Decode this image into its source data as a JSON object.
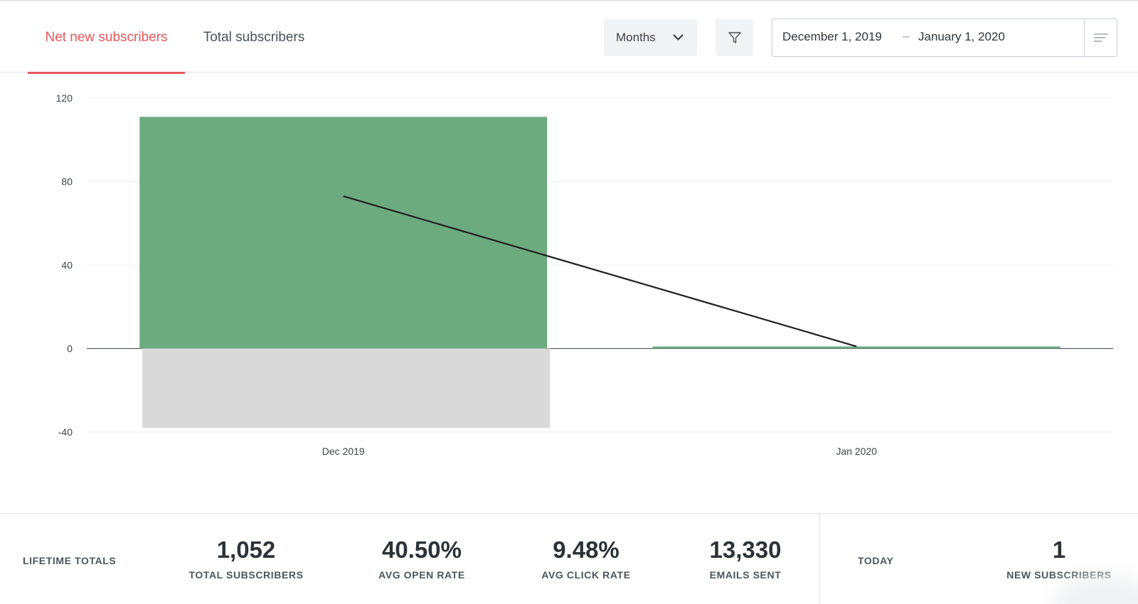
{
  "tabs": {
    "net_new": "Net new subscribers",
    "total": "Total subscribers"
  },
  "toolbar": {
    "period_select": "Months",
    "date_from": "December 1, 2019",
    "date_separator": "–",
    "date_to": "January 1, 2020",
    "icons": {
      "period": "chevron-down-icon",
      "filter": "filter-icon",
      "menu": "menu-lines-icon"
    }
  },
  "colors": {
    "accent": "#e8585c",
    "gain_bar": "#6daa80",
    "loss_bar": "#d9d9d9",
    "trend_line": "#1f1f1f"
  },
  "chart_data": {
    "type": "bar",
    "categories": [
      "Dec 2019",
      "Jan 2020"
    ],
    "series": [
      {
        "values": [
          111,
          1
        ]
      },
      {
        "values": [
          -38,
          0
        ]
      },
      {
        "type": "line",
        "values": [
          73,
          1
        ]
      }
    ],
    "ylim": [
      -40,
      120
    ],
    "yticks": [
      120,
      80,
      40,
      0,
      -40
    ],
    "grid": true
  },
  "footer": {
    "lifetime_label": "LIFETIME TOTALS",
    "stats": [
      {
        "value": "1,052",
        "label": "TOTAL SUBSCRIBERS"
      },
      {
        "value": "40.50%",
        "label": "AVG OPEN RATE"
      },
      {
        "value": "9.48%",
        "label": "AVG CLICK RATE"
      },
      {
        "value": "13,330",
        "label": "EMAILS SENT"
      }
    ],
    "today_label": "TODAY",
    "today_stat": {
      "value": "1",
      "label": "NEW SUBSCRIBERS"
    }
  }
}
